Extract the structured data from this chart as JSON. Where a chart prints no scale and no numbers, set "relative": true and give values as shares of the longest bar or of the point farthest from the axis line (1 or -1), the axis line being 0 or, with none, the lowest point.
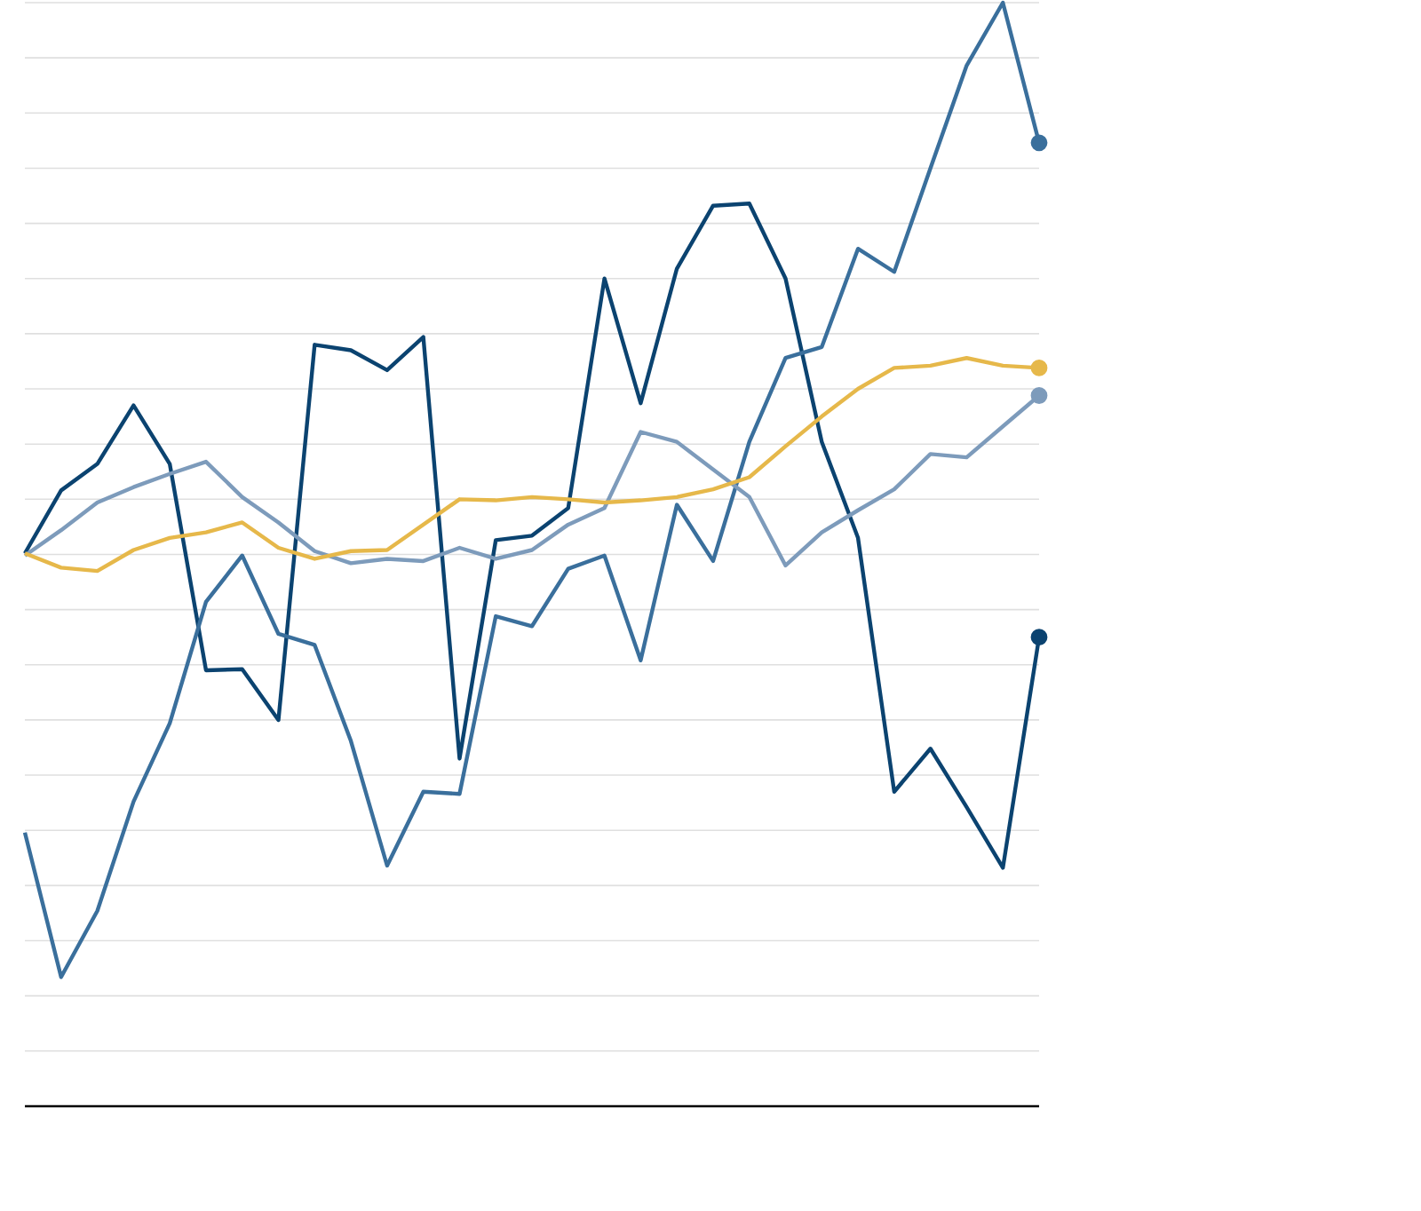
{
  "chart_data": {
    "type": "line",
    "relative": true,
    "grid": "y",
    "categories": [
      null,
      null,
      null,
      null,
      null,
      null,
      null,
      null,
      null,
      null,
      null,
      null,
      null,
      null,
      null,
      null,
      null,
      null,
      null,
      null,
      null,
      null,
      null,
      null,
      null,
      null,
      null,
      null,
      null
    ],
    "series": [
      {
        "color": "#0b4370",
        "values": [
          0.501,
          0.558,
          0.582,
          0.635,
          0.582,
          0.395,
          0.396,
          0.35,
          0.69,
          0.685,
          0.667,
          0.697,
          0.315,
          0.513,
          0.517,
          0.542,
          0.75,
          0.637,
          0.759,
          0.816,
          0.818,
          0.75,
          0.602,
          0.515,
          0.285,
          0.324,
          0.271,
          0.216,
          0.425
        ]
      },
      {
        "color": "#3a6f9c",
        "values": [
          0.248,
          0.117,
          0.177,
          0.276,
          0.347,
          0.457,
          0.499,
          0.428,
          0.418,
          0.331,
          0.218,
          0.285,
          0.283,
          0.444,
          0.435,
          0.487,
          0.499,
          0.404,
          0.545,
          0.494,
          0.602,
          0.678,
          0.688,
          0.777,
          0.756,
          0.85,
          0.943,
          1,
          0.873
        ]
      },
      {
        "color": "#7d9bbb",
        "values": [
          0.499,
          0.522,
          0.547,
          0.561,
          0.573,
          0.584,
          0.552,
          0.529,
          0.503,
          0.492,
          0.496,
          0.494,
          0.506,
          0.496,
          0.504,
          0.527,
          0.542,
          0.611,
          0.602,
          0.577,
          0.552,
          0.49,
          0.52,
          0.54,
          0.559,
          0.591,
          0.588,
          0.616,
          0.644
        ]
      },
      {
        "color": "#e6b84a",
        "values": [
          0.501,
          0.488,
          0.485,
          0.504,
          0.515,
          0.52,
          0.529,
          0.506,
          0.496,
          0.503,
          0.504,
          0.527,
          0.55,
          0.549,
          0.552,
          0.55,
          0.547,
          0.549,
          0.552,
          0.559,
          0.57,
          0.598,
          0.625,
          0.65,
          0.669,
          0.671,
          0.678,
          0.671,
          0.669
        ]
      }
    ]
  }
}
